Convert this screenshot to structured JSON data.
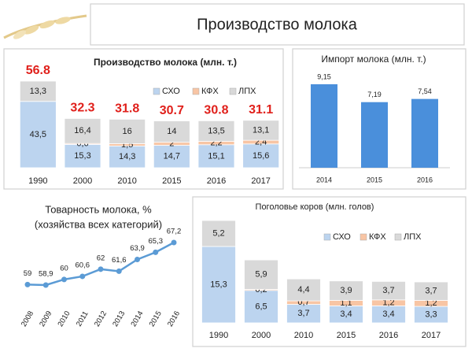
{
  "header": {
    "title": "Производство молока"
  },
  "chart_data": [
    {
      "type": "stacked-bar",
      "title": "Производство молока (млн. т.)",
      "categories": [
        "1990",
        "2000",
        "2010",
        "2015",
        "2016",
        "2017"
      ],
      "series": [
        {
          "name": "СХО",
          "color": "#bcd4ef",
          "values": [
            43.5,
            15.3,
            14.3,
            14.7,
            15.1,
            15.6
          ],
          "value_labels": [
            "43,5",
            "15,3",
            "14,3",
            "14,7",
            "15,1",
            "15,6"
          ]
        },
        {
          "name": "КФХ",
          "color": "#f8c5a4",
          "values": [
            null,
            0.6,
            1.5,
            2,
            2.2,
            2.4
          ],
          "value_labels": [
            null,
            "0,6",
            "1,5",
            "2",
            "2,2",
            "2,4"
          ]
        },
        {
          "name": "ЛПХ",
          "color": "#d9d9d9",
          "values": [
            13.3,
            16.4,
            16,
            14,
            13.5,
            13.1
          ],
          "value_labels": [
            "13,3",
            "16,4",
            "16",
            "14",
            "13,5",
            "13,1"
          ]
        }
      ],
      "totals": [
        56.8,
        32.3,
        31.8,
        30.7,
        30.8,
        31.1
      ],
      "totals_color": "#e0201b"
    },
    {
      "type": "bar",
      "title": "Импорт молока (млн. т.)",
      "categories": [
        "2014",
        "2015",
        "2016"
      ],
      "values": [
        9.15,
        7.19,
        7.54
      ],
      "value_labels": [
        "9,15",
        "7,19",
        "7,54"
      ],
      "color": "#4a8fdb"
    },
    {
      "type": "line",
      "title": [
        "Товарность молока, %",
        "(хозяйства всех категорий)"
      ],
      "categories": [
        "2008",
        "2009",
        "2010",
        "2011",
        "2012",
        "2013",
        "2014",
        "2015",
        "2016"
      ],
      "values": [
        59,
        58.9,
        60,
        60.6,
        62,
        61.6,
        63.9,
        65.3,
        67.2
      ],
      "value_labels": [
        "59",
        "58,9",
        "60",
        "60,6",
        "62",
        "61,6",
        "63,9",
        "65,3",
        "67,2"
      ],
      "color": "#5b9bd5"
    },
    {
      "type": "stacked-bar",
      "title": "Поголовье коров (млн. голов)",
      "categories": [
        "1990",
        "2000",
        "2010",
        "2015",
        "2016",
        "2017"
      ],
      "series": [
        {
          "name": "СХО",
          "color": "#bcd4ef",
          "values": [
            15.3,
            6.5,
            3.7,
            3.4,
            3.4,
            3.3
          ],
          "value_labels": [
            "15,3",
            "6,5",
            "3,7",
            "3,4",
            "3,4",
            "3,3"
          ]
        },
        {
          "name": "КФХ",
          "color": "#f8c5a4",
          "values": [
            null,
            0.2,
            0.7,
            1.1,
            1.2,
            1.2
          ],
          "value_labels": [
            null,
            "0,2",
            "0,7",
            "1,1",
            "1,2",
            "1,2"
          ]
        },
        {
          "name": "ЛПХ",
          "color": "#d9d9d9",
          "values": [
            5.2,
            5.9,
            4.4,
            3.9,
            3.7,
            3.7
          ],
          "value_labels": [
            "5,2",
            "5,9",
            "4,4",
            "3,9",
            "3,7",
            "3,7"
          ]
        }
      ]
    }
  ]
}
